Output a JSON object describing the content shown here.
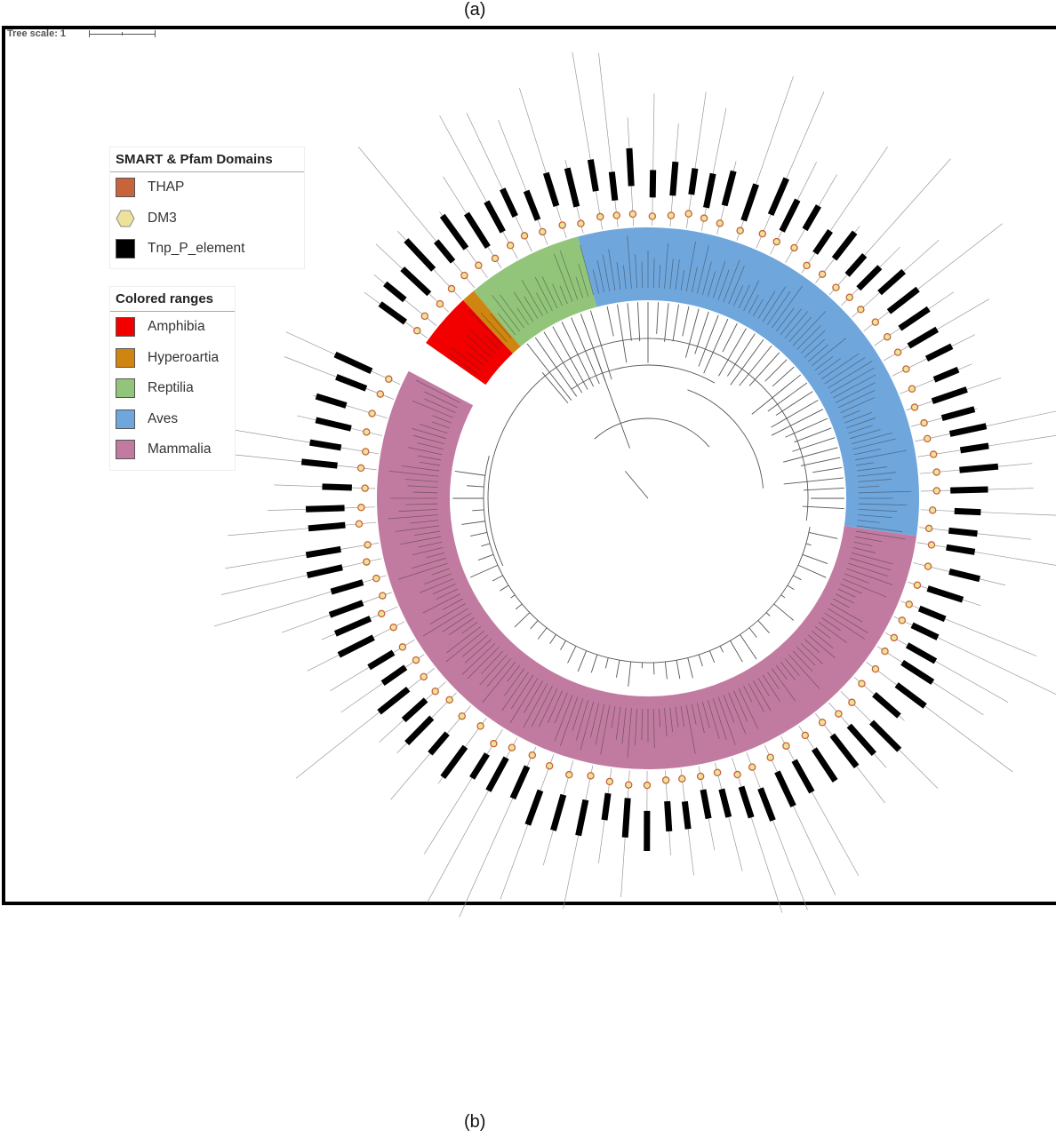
{
  "labels": {
    "panel_a": "(a)",
    "panel_b": "(b)"
  },
  "tree_scale": {
    "label": "Tree scale: 1"
  },
  "legend_domains": {
    "title": "SMART & Pfam Domains",
    "items": [
      {
        "label": "THAP",
        "color": "#c8643c",
        "shape": "square"
      },
      {
        "label": "DM3",
        "color": "#ece29a",
        "shape": "hexagon"
      },
      {
        "label": "Tnp_P_element",
        "color": "#000000",
        "shape": "square"
      }
    ]
  },
  "legend_ranges": {
    "title": "Colored ranges",
    "items": [
      {
        "label": "Amphibia",
        "color": "#f20000"
      },
      {
        "label": "Hyperoartia",
        "color": "#d08510"
      },
      {
        "label": "Reptilia",
        "color": "#92c57a"
      },
      {
        "label": "Aves",
        "color": "#6fa6dc"
      },
      {
        "label": "Mammalia",
        "color": "#c27ba0"
      }
    ]
  },
  "clade_sweep_degrees": [
    {
      "name": "Amphibia",
      "start": 215,
      "end": 227
    },
    {
      "name": "Hyperoartia",
      "start": 227,
      "end": 230
    },
    {
      "name": "Reptilia",
      "start": 230,
      "end": 255
    },
    {
      "name": "Aves",
      "start": 255,
      "end": 368
    },
    {
      "name": "Mammalia",
      "start": 368,
      "end": 568
    }
  ]
}
